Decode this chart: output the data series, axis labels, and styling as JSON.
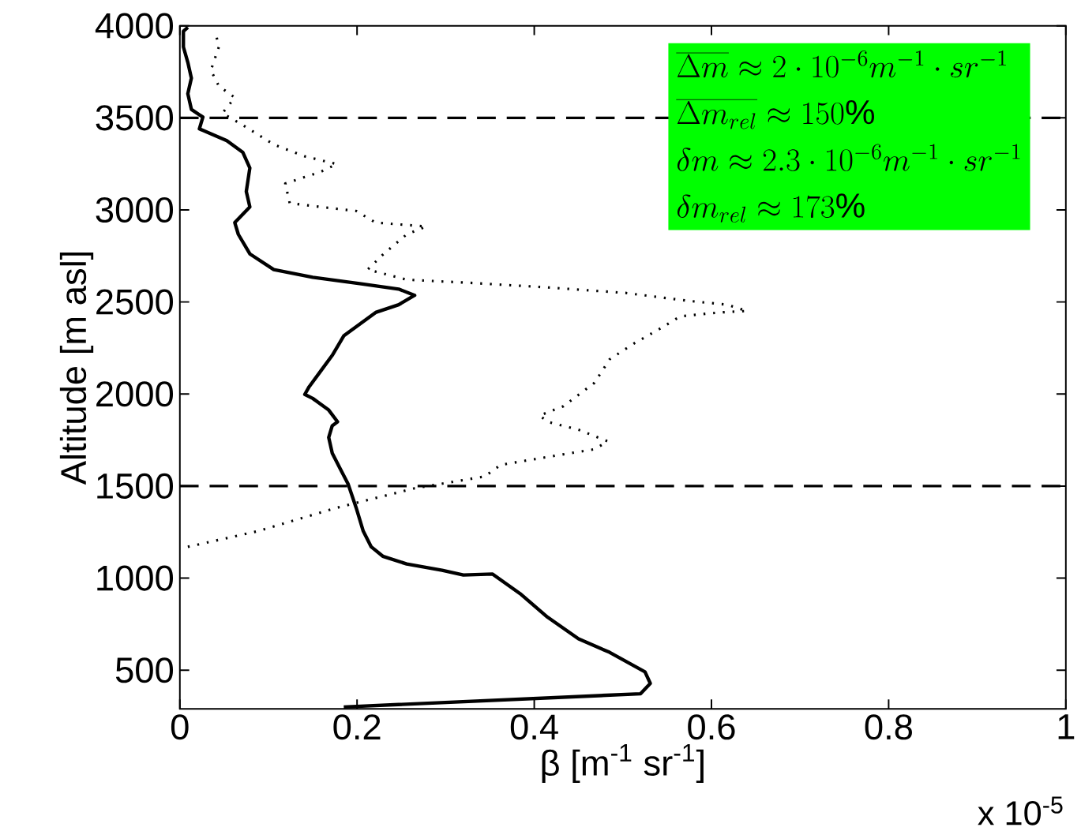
{
  "chart_data": {
    "type": "line",
    "xlabel": "β [m$^{-1}$ sr$^{-1}$]",
    "ylabel": "Altitude [m asl]",
    "xlim": [
      0,
      1
    ],
    "xticks": [
      0,
      0.2,
      0.4,
      0.6,
      0.8,
      1
    ],
    "ylim": [
      290,
      4000
    ],
    "yticks": [
      500,
      1000,
      1500,
      2000,
      2500,
      3000,
      3500,
      4000
    ],
    "grid": false,
    "series": [
      {
        "color": "#000000",
        "line_style": "solid",
        "x": [
          0.185,
          0.52,
          0.531,
          0.525,
          0.485,
          0.45,
          0.415,
          0.384,
          0.353,
          0.32,
          0.296,
          0.256,
          0.229,
          0.216,
          0.207,
          0.199,
          0.19,
          0.181,
          0.172,
          0.168,
          0.172,
          0.178,
          0.168,
          0.15,
          0.141,
          0.146,
          0.159,
          0.172,
          0.185,
          0.203,
          0.221,
          0.247,
          0.265,
          0.247,
          0.203,
          0.15,
          0.106,
          0.079,
          0.066,
          0.062,
          0.079,
          0.075,
          0.079,
          0.071,
          0.053,
          0.022,
          0.026,
          0.013,
          0.009,
          0.013,
          0.009,
          0.004,
          0.004,
          0.009
        ],
        "values": [
          300,
          372,
          428,
          491,
          597,
          670,
          788,
          916,
          1022,
          1017,
          1043,
          1077,
          1119,
          1170,
          1255,
          1382,
          1510,
          1594,
          1679,
          1764,
          1828,
          1849,
          1913,
          1976,
          1998,
          2040,
          2125,
          2210,
          2316,
          2379,
          2443,
          2485,
          2536,
          2570,
          2600,
          2634,
          2676,
          2761,
          2867,
          2931,
          3016,
          3100,
          3228,
          3313,
          3376,
          3440,
          3504,
          3546,
          3631,
          3716,
          3801,
          3885,
          3970,
          3992
        ]
      },
      {
        "color": "#000000",
        "line_style": "dotted",
        "x": [
          0.009,
          0.088,
          0.177,
          0.265,
          0.344,
          0.362,
          0.415,
          0.468,
          0.483,
          0.45,
          0.415,
          0.406,
          0.433,
          0.468,
          0.485,
          0.512,
          0.543,
          0.565,
          0.609,
          0.64,
          0.618,
          0.574,
          0.503,
          0.415,
          0.327,
          0.256,
          0.212,
          0.23,
          0.256,
          0.278,
          0.221,
          0.199,
          0.159,
          0.124,
          0.119,
          0.159,
          0.177,
          0.141,
          0.106,
          0.071,
          0.048,
          0.062,
          0.044,
          0.035,
          0.044,
          0.04
        ],
        "values": [
          1170,
          1255,
          1382,
          1488,
          1552,
          1615,
          1658,
          1700,
          1743,
          1806,
          1849,
          1883,
          1934,
          2061,
          2188,
          2273,
          2358,
          2422,
          2443,
          2451,
          2485,
          2506,
          2549,
          2579,
          2604,
          2621,
          2676,
          2761,
          2867,
          2910,
          2931,
          2994,
          3016,
          3037,
          3143,
          3207,
          3249,
          3291,
          3355,
          3461,
          3525,
          3610,
          3673,
          3758,
          3885,
          3970
        ]
      }
    ],
    "ref_lines": [
      {
        "axis": "y",
        "value": 3500,
        "line_style": "dashed",
        "color": "#000000"
      },
      {
        "axis": "y",
        "value": 1500,
        "line_style": "dashed",
        "color": "#000000"
      }
    ],
    "annotations": [
      "\\overline{\\Delta m} \\approx 2\\cdot 10^{-6} m^{-1}\\cdot sr^{-1}",
      "\\overline{\\Delta m_{rel}} \\approx 150\\%",
      "\\delta m \\approx 2.3\\cdot 10^{-6} m^{-1}\\cdot sr^{-1}",
      "\\delta m_{rel} \\approx 173\\%",
      "x 10$^{-5}$"
    ]
  }
}
